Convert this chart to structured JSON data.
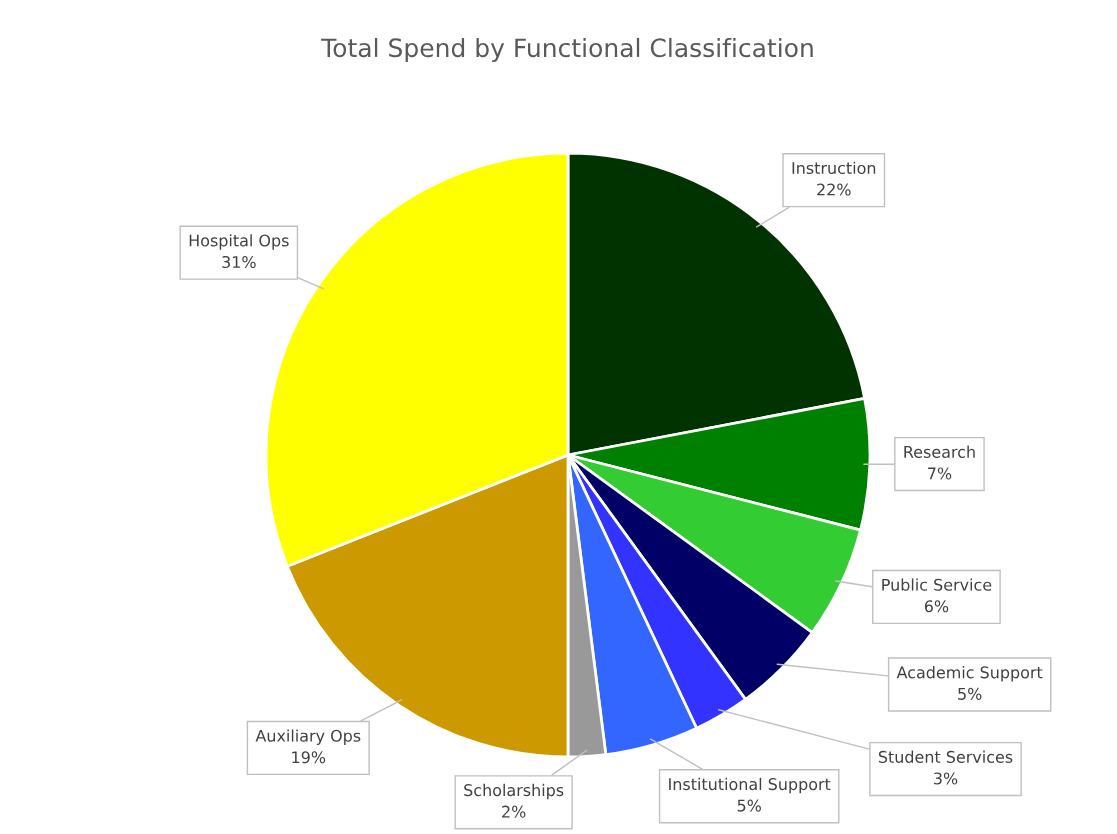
{
  "chart_data": {
    "type": "pie",
    "title": "Total Spend by Functional Classification",
    "categories": [
      "Instruction",
      "Research",
      "Public Service",
      "Academic Support",
      "Student Services",
      "Institutional Support",
      "Scholarships",
      "Auxiliary Ops",
      "Hospital Ops"
    ],
    "values": [
      22,
      7,
      6,
      5,
      3,
      5,
      2,
      19,
      31
    ],
    "value_labels": [
      "22%",
      "7%",
      "6%",
      "5%",
      "3%",
      "5%",
      "2%",
      "19%",
      "31%"
    ],
    "colors": [
      "#003300",
      "#008000",
      "#33cc33",
      "#000066",
      "#3333ff",
      "#3366ff",
      "#999999",
      "#cc9900",
      "#ffff00"
    ],
    "legend": false
  }
}
